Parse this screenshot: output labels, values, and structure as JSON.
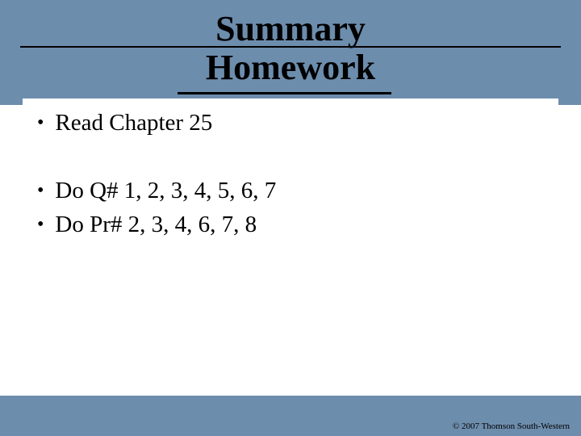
{
  "slide": {
    "background_color": "#6d8dad",
    "content_background": "#ffffff",
    "title": {
      "line1": "Summary",
      "line2": "Homework",
      "font_size": 44,
      "font_weight": "bold",
      "color": "#000000"
    },
    "bullets": [
      "Read Chapter 25",
      "",
      "Do Q# 1, 2, 3, 4, 5, 6, 7",
      "Do Pr# 2, 3, 4, 6, 7, 8"
    ],
    "bullet_font_size": 29,
    "bullet_color": "#000000",
    "copyright": "© 2007 Thomson South-Western",
    "copyright_font_size": 11,
    "underline_color": "#000000"
  }
}
